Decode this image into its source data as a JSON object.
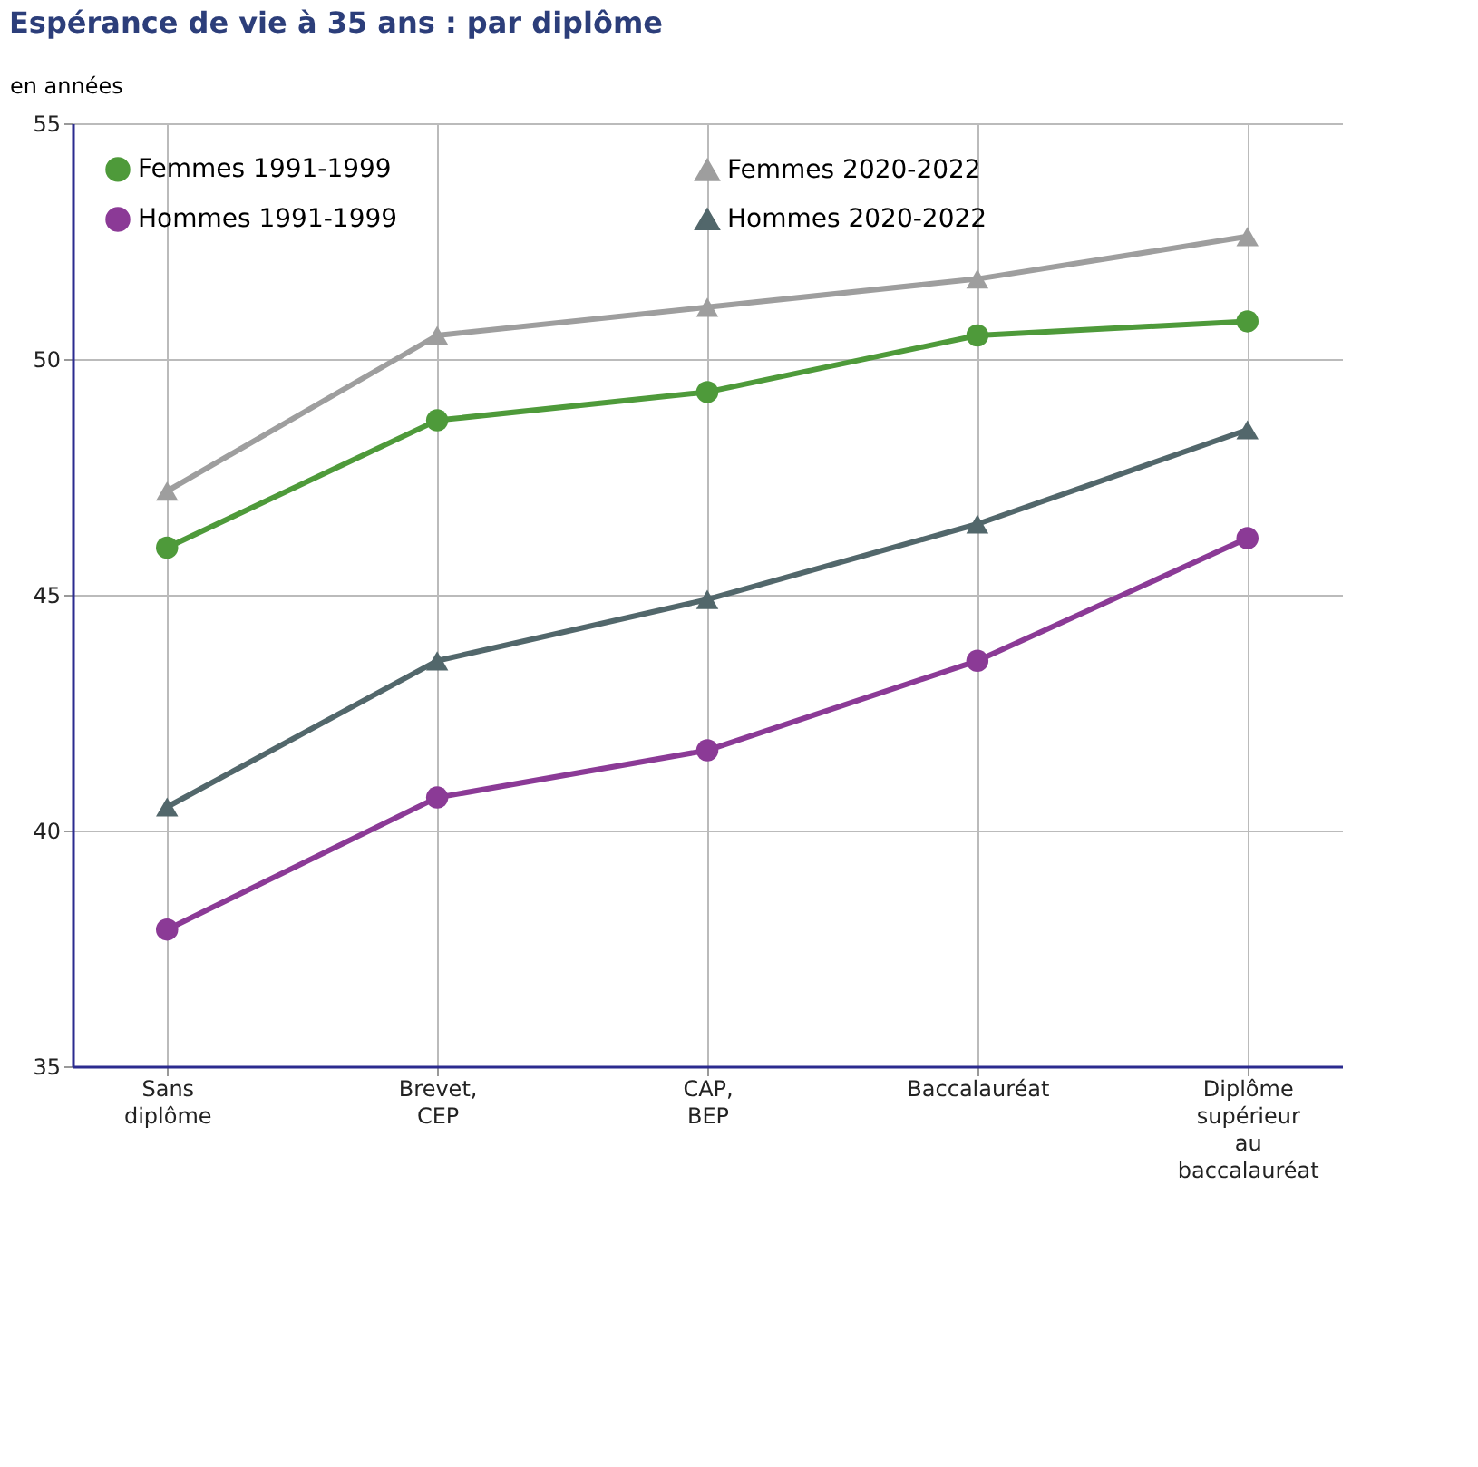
{
  "chart_data": {
    "type": "line",
    "title": "Espérance de vie à 35 ans : par diplôme",
    "ylabel": "en années",
    "categories": [
      "Sans\ndiplôme",
      "Brevet,\nCEP",
      "CAP,\nBEP",
      "Baccalauréat",
      "Diplôme\nsupérieur\nau\nbaccalauréat"
    ],
    "series": [
      {
        "name": "Femmes 1991-1999",
        "color": "#4e9a3a",
        "marker": "circle",
        "values": [
          46.0,
          48.7,
          49.3,
          50.5,
          50.8
        ]
      },
      {
        "name": "Hommes 1991-1999",
        "color": "#8b3a96",
        "marker": "circle",
        "values": [
          37.9,
          40.7,
          41.7,
          43.6,
          46.2
        ]
      },
      {
        "name": "Femmes 2020-2022",
        "color": "#9e9e9e",
        "marker": "triangle",
        "values": [
          47.2,
          50.5,
          51.1,
          51.7,
          52.6
        ]
      },
      {
        "name": "Hommes 2020-2022",
        "color": "#52676b",
        "marker": "triangle",
        "values": [
          40.5,
          43.6,
          44.9,
          46.5,
          48.5
        ]
      }
    ],
    "ylim": [
      35,
      55
    ],
    "yticks": [
      35,
      40,
      45,
      50,
      55
    ],
    "grid": true,
    "legend": "top left",
    "line_style": "solid"
  }
}
